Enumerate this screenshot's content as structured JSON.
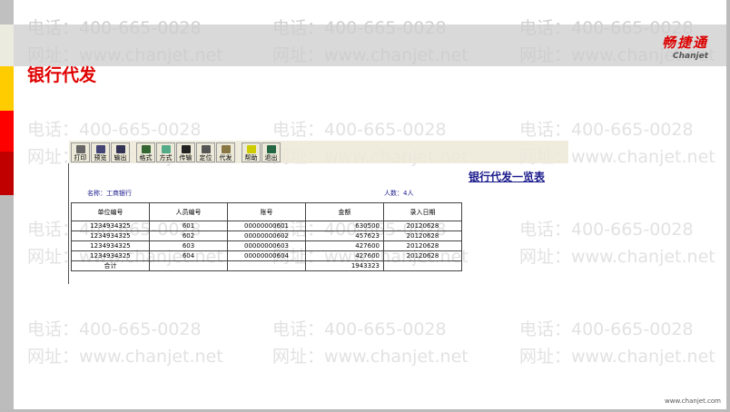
{
  "slide_title": "银行代发",
  "watermark": {
    "phone": "电话：400-665-0028",
    "site": "网址：www.chanjet.net"
  },
  "logo": {
    "cn": "畅捷通",
    "en": "Chanjet"
  },
  "colors": {
    "stripes": [
      "#c0c0c0",
      "#ecebe0",
      "#ffcc00",
      "#ff0000",
      "#c00000",
      "#bcbcbc"
    ],
    "title": "#e00000"
  },
  "toolbar": [
    {
      "label": "打印",
      "icon": "printer-icon"
    },
    {
      "label": "预览",
      "icon": "preview-icon"
    },
    {
      "label": "输出",
      "icon": "export-icon"
    },
    {
      "label": "格式",
      "icon": "format-icon"
    },
    {
      "label": "方式",
      "icon": "method-icon"
    },
    {
      "label": "传输",
      "icon": "save-disk-icon"
    },
    {
      "label": "定位",
      "icon": "locate-icon"
    },
    {
      "label": "代发",
      "icon": "payroll-icon"
    },
    {
      "label": "帮助",
      "icon": "help-icon"
    },
    {
      "label": "退出",
      "icon": "exit-icon"
    }
  ],
  "report": {
    "title": "银行代发一览表",
    "name": "名称：工商银行",
    "count": "人数：4人",
    "columns": [
      "单位编号",
      "人员编号",
      "账号",
      "金额",
      "录入日期"
    ],
    "rows": [
      [
        "1234934325",
        "601",
        "00000000601",
        "630500",
        "20120628"
      ],
      [
        "1234934325",
        "602",
        "00000000602",
        "457623",
        "20120628"
      ],
      [
        "1234934325",
        "603",
        "00000000603",
        "427600",
        "20120628"
      ],
      [
        "1234934325",
        "604",
        "00000000604",
        "427600",
        "20120628"
      ]
    ],
    "total": [
      "合计",
      "",
      "",
      "1943323",
      ""
    ]
  },
  "footer": "www.chanjet.com"
}
